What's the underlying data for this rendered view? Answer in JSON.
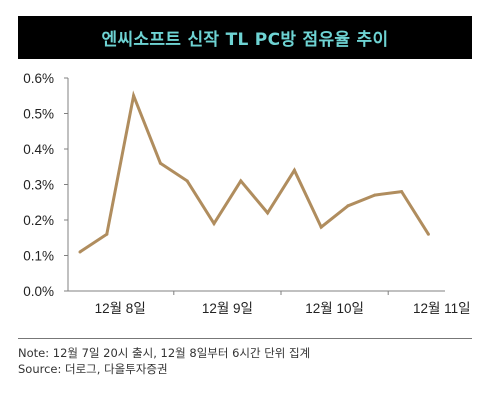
{
  "title": "엔씨소프트 신작 TL PC방 점유율 추이",
  "colors": {
    "title_bg": "#000000",
    "title_text": "#6ed3d3",
    "line": "#b08d5e",
    "axis": "#808080",
    "text": "#222222"
  },
  "chart_data": {
    "type": "line",
    "title": "엔씨소프트 신작 TL PC방 점유율 추이",
    "xlabel": "",
    "ylabel": "",
    "ylim": [
      0,
      0.6
    ],
    "y_ticks": [
      "0.0%",
      "0.1%",
      "0.2%",
      "0.3%",
      "0.4%",
      "0.5%",
      "0.6%"
    ],
    "x_tick_labels": [
      "12월 8일",
      "12월 9일",
      "12월 10일",
      "12월 11일"
    ],
    "x_tick_positions": [
      1.5,
      5.5,
      9.5,
      13.5
    ],
    "grid": false,
    "legend": "none",
    "series": [
      {
        "name": "",
        "color": "#b08d5e",
        "values": [
          0.11,
          0.16,
          0.55,
          0.36,
          0.31,
          0.19,
          0.31,
          0.22,
          0.34,
          0.18,
          0.24,
          0.27,
          0.28,
          0.16
        ]
      }
    ]
  },
  "notes": {
    "note": "Note: 12월 7일 20시 출시, 12월 8일부터 6시간 단위 집계",
    "source": "Source: 더로그, 다올투자증권"
  }
}
